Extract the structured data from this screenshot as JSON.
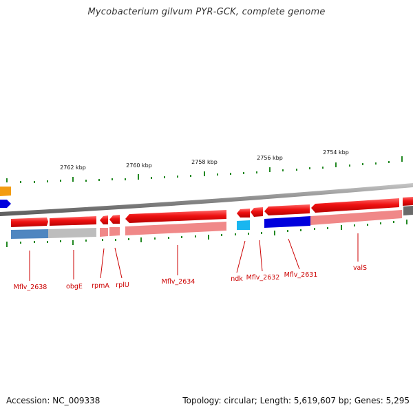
{
  "title": "Mycobacterium gilvum PYR-GCK, complete genome",
  "footer": {
    "accession": "Accession: NC_009338",
    "topology": "Topology: circular; Length: 5,619,607 bp; Genes: 5,295"
  },
  "colors": {
    "forward_gene": "#ee1111",
    "forward_gene_light": "#f08888",
    "backbone": "#777777",
    "tick": "#228822",
    "label": "#cc0000",
    "blue_gene": "#0000dd",
    "steelblue_gene": "#4f86c0",
    "gray_gene": "#bbbbbb",
    "cyan_gene": "#19b6f0",
    "orange_gene": "#f39c12"
  },
  "scale_labels": [
    "2762 kbp",
    "2760 kbp",
    "2758 kbp",
    "2756 kbp",
    "2754 kbp"
  ],
  "gene_labels": [
    "Mflv_2638",
    "obgE",
    "rpmA",
    "rplU",
    "Mflv_2634",
    "ndk",
    "Mflv_2632",
    "Mflv_2631",
    "valS"
  ]
}
